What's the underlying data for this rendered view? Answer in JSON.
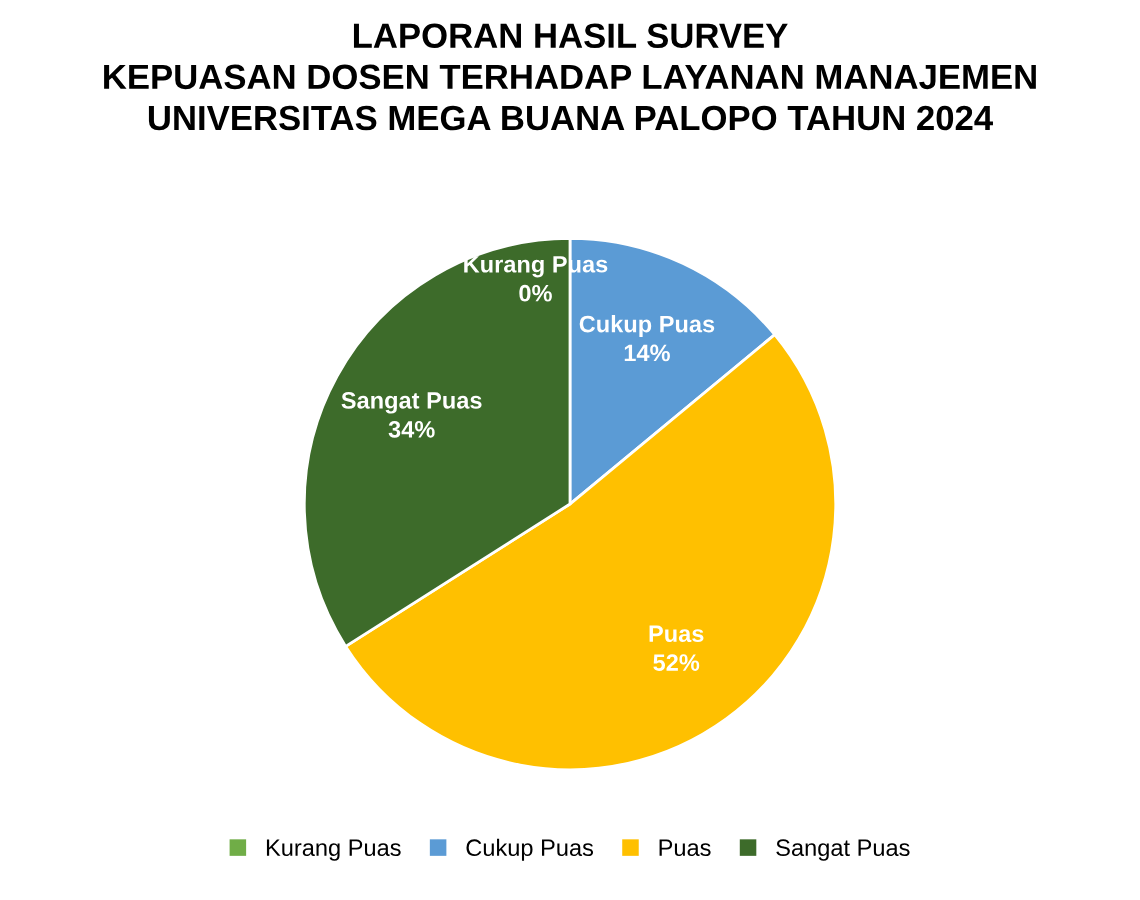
{
  "chart_data": {
    "type": "pie",
    "title": "LAPORAN HASIL SURVEY\nKEPUASAN DOSEN TERHADAP LAYANAN MANAJEMEN\nUNIVERSITAS MEGA BUANA PALOPO TAHUN 2024",
    "categories": [
      "Kurang Puas",
      "Cukup Puas",
      "Puas",
      "Sangat Puas"
    ],
    "values": [
      0,
      14,
      52,
      34
    ],
    "colors": [
      "#70ad47",
      "#5b9bd5",
      "#ffc000",
      "#3d6b2a"
    ],
    "value_labels": [
      "0%",
      "14%",
      "52%",
      "34%"
    ],
    "legend": "bottom"
  }
}
